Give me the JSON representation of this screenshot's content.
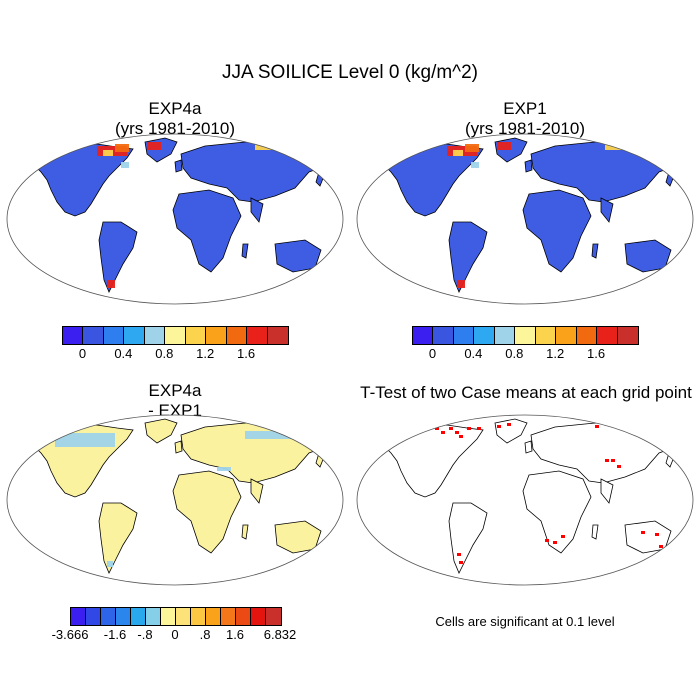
{
  "title": "JJA SOILICE Level 0 (kg/m^2)",
  "panels": {
    "p1": {
      "title_line1": "EXP4a",
      "title_line2": "(yrs 1981-2010)"
    },
    "p2": {
      "title_line1": "EXP1",
      "title_line2": "(yrs 1981-2010)"
    },
    "p3": {
      "title_line1": "EXP4a",
      "title_line2": "- EXP1"
    },
    "p4": {
      "title": "T-Test of two Case means at each grid point",
      "note": "Cells are significant at 0.1 level"
    }
  },
  "colorbar_abs": {
    "colors": [
      "#3a1ff0",
      "#3a55e0",
      "#2f7ef0",
      "#2ea8f0",
      "#9fd3ea",
      "#fdf59a",
      "#fcd34d",
      "#f9a21a",
      "#f26a10",
      "#e8211a",
      "#c9302c"
    ],
    "tick_labels": [
      "0",
      "0.4",
      "0.8",
      "1.2",
      "1.6"
    ]
  },
  "colorbar_diff": {
    "colors": [
      "#3a1ff0",
      "#3248e6",
      "#2d64e8",
      "#2a86ec",
      "#2aa8ee",
      "#86cfe8",
      "#fdf59a",
      "#fde27a",
      "#fcc843",
      "#f9a21a",
      "#f4781a",
      "#ec4a14",
      "#e4150e",
      "#c9302c"
    ],
    "tick_labels": [
      "-3.666",
      "-1.6",
      "-.8",
      "0",
      ".8",
      "1.6",
      "6.832"
    ]
  },
  "colors": {
    "ocean": "#ffffff",
    "land_abs": "#3f5de3",
    "land_diff": "#fbf2a0",
    "significant": "#ff0000"
  },
  "chart_data": [
    {
      "type": "heatmap",
      "title": "EXP4a",
      "subtitle": "(yrs 1981-2010)",
      "projection": "Robinson",
      "colorbar_ticks": [
        0,
        0.4,
        0.8,
        1.2,
        1.6
      ]
    },
    {
      "type": "heatmap",
      "title": "EXP1",
      "subtitle": "(yrs 1981-2010)",
      "projection": "Robinson",
      "colorbar_ticks": [
        0,
        0.4,
        0.8,
        1.2,
        1.6
      ]
    },
    {
      "type": "heatmap",
      "title": "EXP4a - EXP1",
      "projection": "Robinson",
      "colorbar_ticks": [
        -3.666,
        -1.6,
        -0.8,
        0,
        0.8,
        1.6,
        6.832
      ]
    },
    {
      "type": "heatmap",
      "title": "T-Test of two Case means at each grid point",
      "projection": "Robinson",
      "note": "Cells are significant at 0.1 level"
    }
  ]
}
